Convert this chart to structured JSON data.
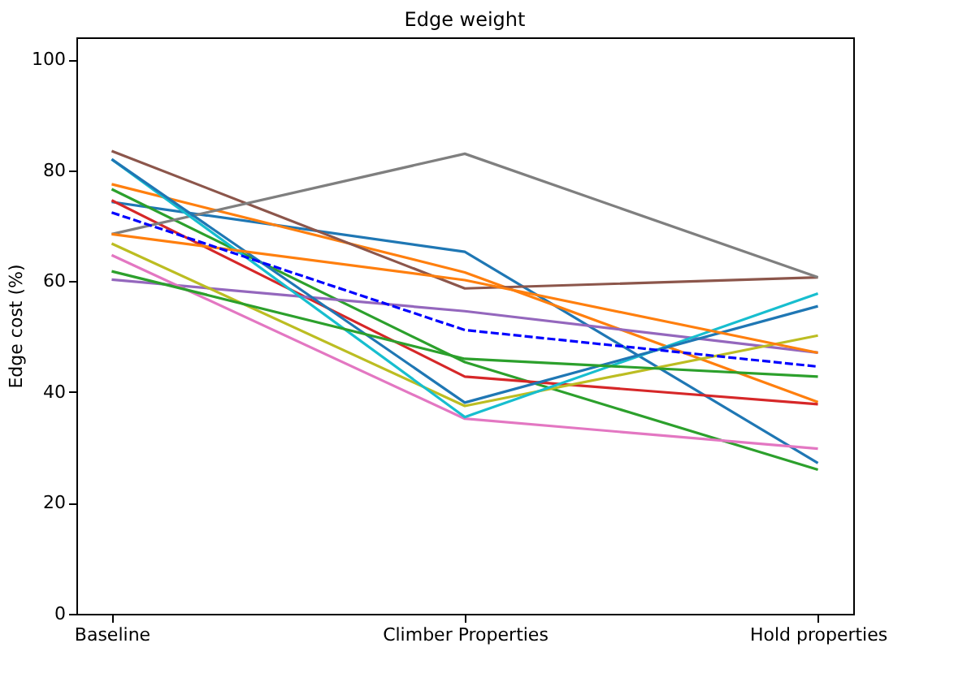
{
  "chart_data": {
    "type": "line",
    "title": "Edge weight",
    "ylabel": "Edge cost (%)",
    "categories": [
      "Baseline",
      "Climber Properties",
      "Hold properties"
    ],
    "ylim": [
      0,
      104
    ],
    "yticks": [
      0,
      20,
      40,
      60,
      80,
      100
    ],
    "grid": false,
    "marker": "none",
    "series": [
      {
        "color": "#1f77b4",
        "values": [
          74.3,
          65.3,
          27.2
        ]
      },
      {
        "color": "#ff7f0e",
        "values": [
          77.5,
          61.6,
          38.2
        ]
      },
      {
        "color": "#2ca02c",
        "values": [
          76.6,
          45.4,
          26
        ]
      },
      {
        "color": "#d62728",
        "values": [
          74.6,
          42.8,
          37.8
        ]
      },
      {
        "color": "#9467bd",
        "values": [
          60.3,
          54.6,
          47.1
        ]
      },
      {
        "color": "#8c564b",
        "values": [
          83.5,
          58.7,
          60.7
        ]
      },
      {
        "color": "#e377c2",
        "values": [
          64.7,
          35.2,
          29.8
        ]
      },
      {
        "color": "#7f7f7f",
        "values": [
          68.5,
          83,
          60.7
        ]
      },
      {
        "color": "#bcbd22",
        "values": [
          66.8,
          37.5,
          50.2
        ]
      },
      {
        "color": "#17becf",
        "values": [
          82,
          35.5,
          57.8
        ]
      },
      {
        "color": "#1f77b4",
        "values": [
          82,
          38.1,
          55.5
        ]
      },
      {
        "color": "#ff7f0e",
        "values": [
          68.5,
          60.2,
          47.1
        ]
      },
      {
        "color": "#2ca02c",
        "values": [
          61.8,
          46,
          42.8
        ]
      },
      {
        "color": "#0000ff",
        "values": [
          72.4,
          51.2,
          44.6
        ],
        "line_style": "dashed"
      }
    ]
  }
}
